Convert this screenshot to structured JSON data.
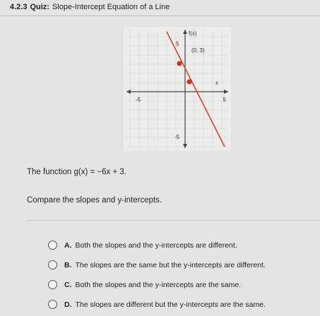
{
  "header": {
    "number": "4.2.3",
    "label": "Quiz:",
    "title": "Slope-Intercept Equation of a Line"
  },
  "graph": {
    "y_axis_label": "f(x)",
    "x_axis_label": "x",
    "point_label": "(0, 3)",
    "x_ticks": [
      "-5",
      "5"
    ],
    "y_ticks": [
      "5",
      "-5"
    ]
  },
  "question": {
    "function_text": "The function g(x) = −6x + 3.",
    "prompt": "Compare the slopes and y-intercepts."
  },
  "options": [
    {
      "letter": "A.",
      "text": "Both the slopes and the y-intercepts are different."
    },
    {
      "letter": "B.",
      "text": "The slopes are the same but the y-intercepts are different."
    },
    {
      "letter": "C.",
      "text": "Both the slopes and the y-intercepts are the same."
    },
    {
      "letter": "D.",
      "text": "The slopes are different but the y-intercepts are the same."
    }
  ]
}
